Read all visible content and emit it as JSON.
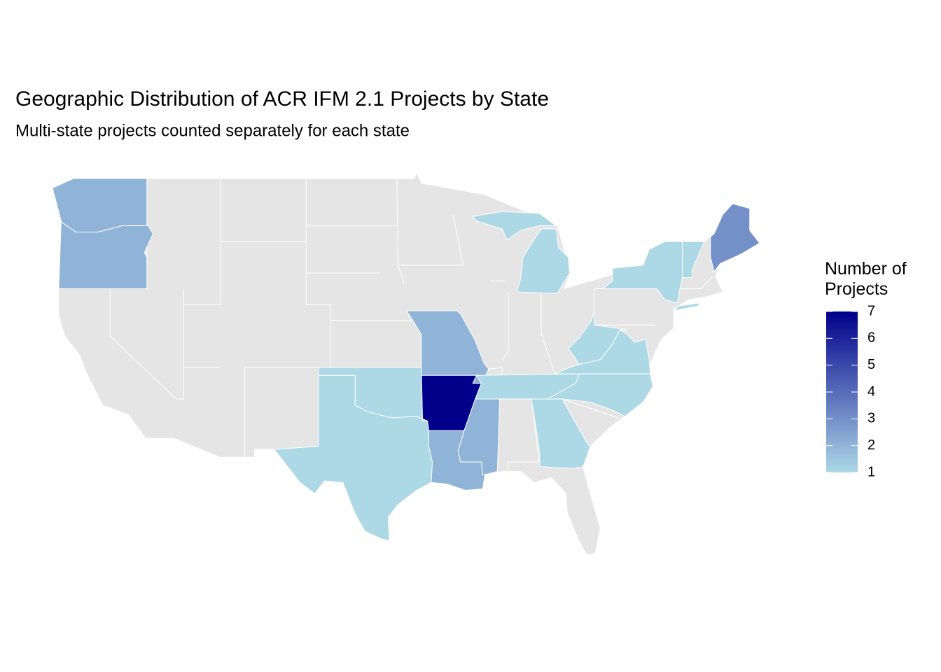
{
  "chart_data": {
    "type": "choropleth",
    "title": "Geographic Distribution of ACR IFM 2.1 Projects by State",
    "subtitle": "Multi-state projects counted separately for each state",
    "legend_title": "Number of Projects",
    "values": [
      2,
      2,
      2,
      7,
      2,
      2,
      1,
      1,
      1,
      1,
      1,
      1,
      1,
      1,
      1,
      1,
      3
    ],
    "lim": [
      1,
      7
    ],
    "ticks": [
      1,
      2,
      3,
      4,
      5,
      6,
      7
    ],
    "low_color": "#add8e6",
    "high_color": "#00008b",
    "missing_color": "#e5e5e5"
  }
}
